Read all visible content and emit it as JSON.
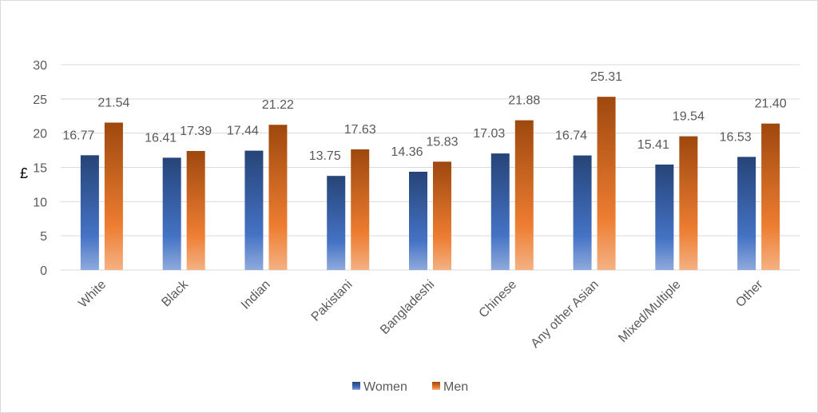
{
  "chart_data": {
    "type": "bar",
    "title": "",
    "xlabel": "",
    "ylabel": "£",
    "ylim": [
      0,
      30
    ],
    "yticks": [
      0,
      5,
      10,
      15,
      20,
      25,
      30
    ],
    "grid": true,
    "legend_position": "bottom",
    "categories": [
      "White",
      "Black",
      "Indian",
      "Pakistani",
      "Bangladeshi",
      "Chinese",
      "Any other Asian",
      "Mixed/Multiple",
      "Other"
    ],
    "series": [
      {
        "name": "Women",
        "color": "#4472C4",
        "values": [
          16.77,
          16.41,
          17.44,
          13.75,
          14.36,
          17.03,
          16.74,
          15.41,
          16.53
        ],
        "labels": [
          "16.77",
          "16.41",
          "17.44",
          "13.75",
          "14.36",
          "17.03",
          "16.74",
          "15.41",
          "16.53"
        ]
      },
      {
        "name": "Men",
        "color": "#ED7D31",
        "values": [
          21.54,
          17.39,
          21.22,
          17.63,
          15.83,
          21.88,
          25.31,
          19.54,
          21.4
        ],
        "labels": [
          "21.54",
          "17.39",
          "21.22",
          "17.63",
          "15.83",
          "21.88",
          "25.31",
          "19.54",
          "21.40"
        ]
      }
    ]
  }
}
